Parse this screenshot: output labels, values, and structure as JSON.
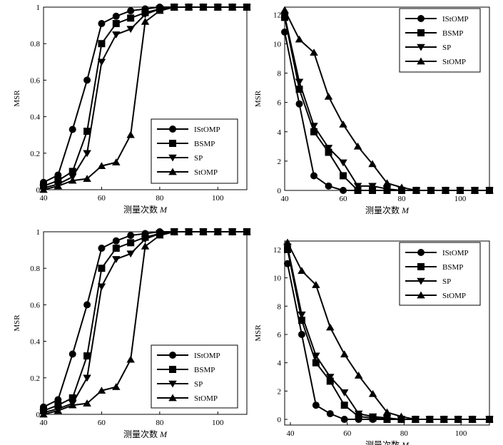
{
  "chart_data": [
    {
      "type": "line",
      "ylabel": "MSR",
      "xlabel": "测量次数",
      "xlabel_var": "M",
      "xlim": [
        40,
        110
      ],
      "ylim": [
        0,
        1
      ],
      "xticks": [
        40,
        60,
        80,
        100
      ],
      "yticks": [
        0,
        0.2,
        0.4,
        0.6,
        0.8,
        1
      ],
      "ytick_labels": [
        "0",
        "0.2",
        "0.4",
        "0.6",
        "0.8",
        "1"
      ],
      "legend_position": "bottom-right",
      "series": [
        {
          "name": "IStOMP",
          "marker": "circle",
          "x": [
            40,
            45,
            50,
            55,
            60,
            65,
            70,
            75,
            80,
            85,
            90,
            95,
            100,
            105,
            110
          ],
          "y": [
            0.04,
            0.08,
            0.33,
            0.6,
            0.91,
            0.95,
            0.98,
            0.99,
            1,
            1,
            1,
            1,
            1,
            1,
            1
          ]
        },
        {
          "name": "BSMP",
          "marker": "square",
          "x": [
            40,
            45,
            50,
            55,
            60,
            65,
            70,
            75,
            80,
            85,
            90,
            95,
            100,
            105,
            110
          ],
          "y": [
            0.02,
            0.05,
            0.1,
            0.32,
            0.8,
            0.91,
            0.94,
            0.97,
            0.99,
            1,
            1,
            1,
            1,
            1,
            1
          ]
        },
        {
          "name": "SP",
          "marker": "triangle-down",
          "x": [
            40,
            45,
            50,
            55,
            60,
            65,
            70,
            75,
            80,
            85,
            90,
            95,
            100,
            105,
            110
          ],
          "y": [
            0.01,
            0.03,
            0.07,
            0.2,
            0.7,
            0.85,
            0.88,
            0.96,
            0.99,
            1,
            1,
            1,
            1,
            1,
            1
          ]
        },
        {
          "name": "StOMP",
          "marker": "triangle-up",
          "x": [
            40,
            45,
            50,
            55,
            60,
            65,
            70,
            75,
            80,
            85,
            90,
            95,
            100,
            105,
            110
          ],
          "y": [
            0,
            0.02,
            0.05,
            0.06,
            0.13,
            0.15,
            0.3,
            0.92,
            0.98,
            1,
            1,
            1,
            1,
            1,
            1
          ]
        }
      ]
    },
    {
      "type": "line",
      "ylabel": "MSR",
      "xlabel": "测量次数",
      "xlabel_var": "M",
      "xlim": [
        40,
        110
      ],
      "ylim": [
        0,
        12.5
      ],
      "xticks": [
        40,
        60,
        80,
        100
      ],
      "yticks": [
        0,
        2,
        4,
        6,
        8,
        10,
        12
      ],
      "ytick_labels": [
        "0",
        "2",
        "4",
        "6",
        "8",
        "10",
        "12"
      ],
      "legend_position": "top-right",
      "series": [
        {
          "name": "IStOMP",
          "marker": "circle",
          "x": [
            40,
            45,
            50,
            55,
            60,
            65,
            70,
            75,
            80,
            85,
            90,
            95,
            100,
            105,
            110
          ],
          "y": [
            10.8,
            5.9,
            1,
            0.3,
            0,
            0,
            0,
            0,
            0,
            0,
            0,
            0,
            0,
            0,
            0
          ]
        },
        {
          "name": "BSMP",
          "marker": "square",
          "x": [
            40,
            45,
            50,
            55,
            60,
            65,
            70,
            75,
            80,
            85,
            90,
            95,
            100,
            105,
            110
          ],
          "y": [
            11.8,
            6.9,
            4,
            2.6,
            1,
            0,
            0,
            0,
            0,
            0,
            0,
            0,
            0,
            0,
            0
          ]
        },
        {
          "name": "SP",
          "marker": "triangle-down",
          "x": [
            40,
            45,
            50,
            55,
            60,
            65,
            70,
            75,
            80,
            85,
            90,
            95,
            100,
            105,
            110
          ],
          "y": [
            11.9,
            7.4,
            4.4,
            2.9,
            1.9,
            0.3,
            0.3,
            0.1,
            0,
            0,
            0,
            0,
            0,
            0,
            0
          ]
        },
        {
          "name": "StOMP",
          "marker": "triangle-up",
          "x": [
            40,
            45,
            50,
            55,
            60,
            65,
            70,
            75,
            80,
            85,
            90,
            95,
            100,
            105,
            110
          ],
          "y": [
            12.3,
            10.3,
            9.4,
            6.4,
            4.5,
            3,
            1.8,
            0.5,
            0.2,
            0,
            0,
            0,
            0,
            0,
            0
          ]
        }
      ]
    },
    {
      "type": "line",
      "ylabel": "MSR",
      "xlabel": "测量次数",
      "xlabel_var": "M",
      "xlim": [
        40,
        110
      ],
      "ylim": [
        0,
        1
      ],
      "xticks": [
        40,
        60,
        80,
        100
      ],
      "yticks": [
        0,
        0.2,
        0.4,
        0.6,
        0.8,
        1
      ],
      "ytick_labels": [
        "0",
        "0.2",
        "0.4",
        "0.6",
        "0.8",
        "1"
      ],
      "legend_position": "bottom-right",
      "series": [
        {
          "name": "IStOMP",
          "marker": "circle",
          "x": [
            40,
            45,
            50,
            55,
            60,
            65,
            70,
            75,
            80,
            85,
            90,
            95,
            100,
            105,
            110
          ],
          "y": [
            0.04,
            0.08,
            0.33,
            0.6,
            0.91,
            0.95,
            0.98,
            0.99,
            1,
            1,
            1,
            1,
            1,
            1,
            1
          ]
        },
        {
          "name": "BSMP",
          "marker": "square",
          "x": [
            40,
            45,
            50,
            55,
            60,
            65,
            70,
            75,
            80,
            85,
            90,
            95,
            100,
            105,
            110
          ],
          "y": [
            0.02,
            0.05,
            0.09,
            0.32,
            0.8,
            0.91,
            0.94,
            0.97,
            0.99,
            1,
            1,
            1,
            1,
            1,
            1
          ]
        },
        {
          "name": "SP",
          "marker": "triangle-down",
          "x": [
            40,
            45,
            50,
            55,
            60,
            65,
            70,
            75,
            80,
            85,
            90,
            95,
            100,
            105,
            110
          ],
          "y": [
            0.01,
            0.03,
            0.06,
            0.2,
            0.7,
            0.85,
            0.88,
            0.96,
            0.99,
            1,
            1,
            1,
            1,
            1,
            1
          ]
        },
        {
          "name": "StOMP",
          "marker": "triangle-up",
          "x": [
            40,
            45,
            50,
            55,
            60,
            65,
            70,
            75,
            80,
            85,
            90,
            95,
            100,
            105,
            110
          ],
          "y": [
            0,
            0.02,
            0.05,
            0.06,
            0.13,
            0.15,
            0.3,
            0.92,
            0.98,
            1,
            1,
            1,
            1,
            1,
            1
          ]
        }
      ]
    },
    {
      "type": "line",
      "ylabel": "MSR",
      "xlabel": "测量次数",
      "xlabel_var": "M",
      "xlim": [
        38,
        110
      ],
      "ylim": [
        -0.4,
        12.6
      ],
      "xticks": [
        40,
        60,
        80,
        100
      ],
      "yticks": [
        0,
        2,
        4,
        6,
        8,
        10,
        12
      ],
      "ytick_labels": [
        "0",
        "2",
        "4",
        "6",
        "8",
        "10",
        "12"
      ],
      "legend_position": "top-right",
      "series": [
        {
          "name": "IStOMP",
          "marker": "circle",
          "x": [
            39,
            44,
            49,
            54,
            59,
            64,
            69,
            74,
            79,
            84,
            89,
            94,
            99,
            104,
            110
          ],
          "y": [
            11,
            6,
            1,
            0.4,
            0,
            0,
            0,
            0,
            0,
            0,
            0,
            0,
            0,
            0,
            0
          ]
        },
        {
          "name": "BSMP",
          "marker": "square",
          "x": [
            39,
            44,
            49,
            54,
            59,
            64,
            69,
            74,
            79,
            84,
            89,
            94,
            99,
            104,
            110
          ],
          "y": [
            12,
            7,
            4,
            2.7,
            1,
            0.2,
            0.1,
            0,
            0,
            0,
            0,
            0,
            0,
            0,
            0
          ]
        },
        {
          "name": "SP",
          "marker": "triangle-down",
          "x": [
            39,
            44,
            49,
            54,
            59,
            64,
            69,
            74,
            79,
            84,
            89,
            94,
            99,
            104,
            110
          ],
          "y": [
            12.2,
            7.4,
            4.5,
            3,
            1.9,
            0.4,
            0.2,
            0.1,
            0,
            0,
            0,
            0,
            0,
            0,
            0
          ]
        },
        {
          "name": "StOMP",
          "marker": "triangle-up",
          "x": [
            39,
            44,
            49,
            54,
            59,
            64,
            69,
            74,
            79,
            84,
            89,
            94,
            99,
            104,
            110
          ],
          "y": [
            12.5,
            10.5,
            9.5,
            6.5,
            4.6,
            3.1,
            1.8,
            0.5,
            0.2,
            0,
            0,
            0,
            0,
            0,
            0
          ]
        }
      ]
    }
  ]
}
